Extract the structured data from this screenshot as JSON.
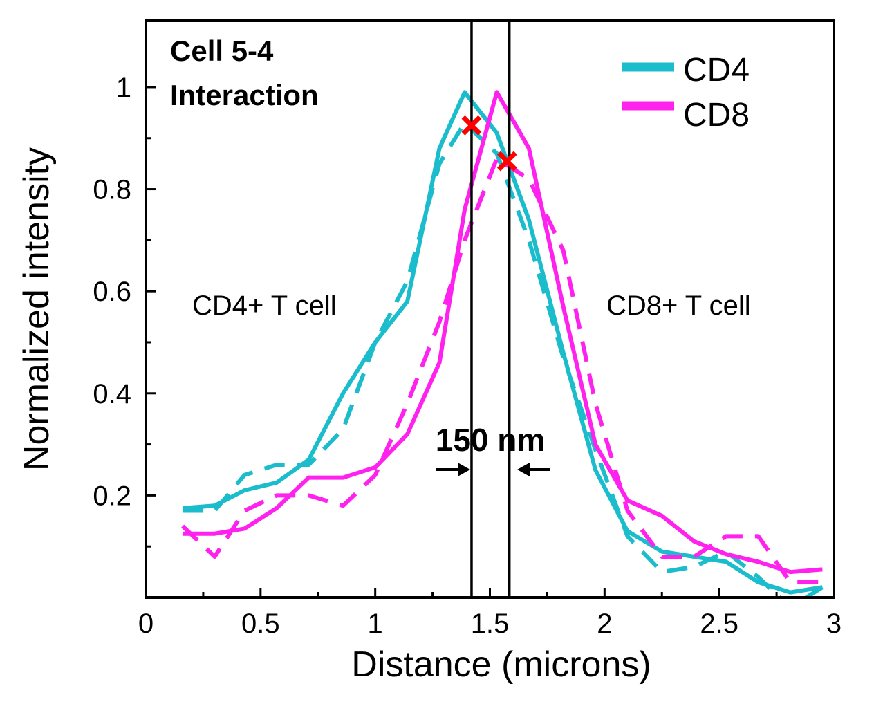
{
  "chart_data": {
    "type": "line",
    "title": "Cell 5-4 Interaction",
    "title_lines": [
      "Cell 5-4",
      "Interaction"
    ],
    "xlabel": "Distance (microns)",
    "ylabel": "Normalized intensity",
    "xlim": [
      0,
      3
    ],
    "ylim": [
      0,
      1.13
    ],
    "xticks": [
      0,
      0.5,
      1,
      1.5,
      2,
      2.5,
      3
    ],
    "xtick_labels": [
      "0",
      "0.5",
      "1",
      "1.5",
      "2",
      "2.5",
      "3"
    ],
    "yticks": [
      0.2,
      0.4,
      0.6,
      0.8,
      1.0
    ],
    "ytick_labels": [
      "0.2",
      "0.4",
      "0.6",
      "0.8",
      "1"
    ],
    "grid": false,
    "legend": "top-right",
    "colors": {
      "CD4": "#1bbccb",
      "CD8": "#ff22ee",
      "marker": "#ff0000",
      "lines": "#000000"
    },
    "series": [
      {
        "name": "CD4",
        "style": "solid",
        "color": "#1bbccb",
        "x": [
          0.16,
          0.3,
          0.43,
          0.57,
          0.71,
          0.86,
          1.0,
          1.14,
          1.28,
          1.39,
          1.53,
          1.67,
          1.82,
          1.96,
          2.1,
          2.25,
          2.39,
          2.53,
          2.67,
          2.81,
          2.95
        ],
        "y": [
          0.175,
          0.18,
          0.21,
          0.225,
          0.27,
          0.4,
          0.5,
          0.58,
          0.88,
          0.99,
          0.91,
          0.74,
          0.48,
          0.25,
          0.13,
          0.09,
          0.08,
          0.07,
          0.03,
          0.01,
          0.02
        ]
      },
      {
        "name": "",
        "style": "dashed",
        "color": "#1bbccb",
        "x": [
          0.16,
          0.3,
          0.43,
          0.57,
          0.71,
          0.86,
          1.0,
          1.14,
          1.28,
          1.39,
          1.53,
          1.67,
          1.82,
          1.96,
          2.1,
          2.25,
          2.39,
          2.53,
          2.67,
          2.81,
          2.95
        ],
        "y": [
          0.17,
          0.17,
          0.24,
          0.26,
          0.26,
          0.33,
          0.5,
          0.62,
          0.85,
          0.93,
          0.87,
          0.7,
          0.47,
          0.29,
          0.12,
          0.05,
          0.06,
          0.09,
          0.04,
          -0.02,
          0.02
        ]
      },
      {
        "name": "CD8",
        "style": "solid",
        "color": "#ff22ee",
        "x": [
          0.16,
          0.3,
          0.43,
          0.57,
          0.71,
          0.86,
          1.0,
          1.14,
          1.28,
          1.39,
          1.53,
          1.67,
          1.82,
          1.96,
          2.1,
          2.25,
          2.39,
          2.53,
          2.67,
          2.81,
          2.95
        ],
        "y": [
          0.125,
          0.125,
          0.135,
          0.175,
          0.235,
          0.235,
          0.255,
          0.32,
          0.46,
          0.76,
          0.99,
          0.88,
          0.57,
          0.3,
          0.19,
          0.16,
          0.11,
          0.085,
          0.07,
          0.05,
          0.055
        ]
      },
      {
        "name": "",
        "style": "dashed",
        "color": "#ff22ee",
        "x": [
          0.16,
          0.3,
          0.43,
          0.57,
          0.71,
          0.86,
          1.0,
          1.14,
          1.28,
          1.39,
          1.53,
          1.67,
          1.82,
          1.96,
          2.1,
          2.25,
          2.39,
          2.53,
          2.67,
          2.81,
          2.95
        ],
        "y": [
          0.14,
          0.08,
          0.17,
          0.2,
          0.2,
          0.18,
          0.24,
          0.38,
          0.54,
          0.7,
          0.86,
          0.82,
          0.68,
          0.38,
          0.17,
          0.08,
          0.08,
          0.12,
          0.12,
          0.03,
          0.03
        ]
      }
    ],
    "markers": [
      {
        "x": 1.42,
        "y": 0.925,
        "shape": "x",
        "color": "#ff0000"
      },
      {
        "x": 1.575,
        "y": 0.855,
        "shape": "x",
        "color": "#ff0000"
      }
    ],
    "vertical_lines": [
      1.42,
      1.585
    ],
    "annotations": {
      "distance_label": "150 nm",
      "left_region": "CD4+ T cell",
      "right_region": "CD8+ T cell"
    }
  }
}
